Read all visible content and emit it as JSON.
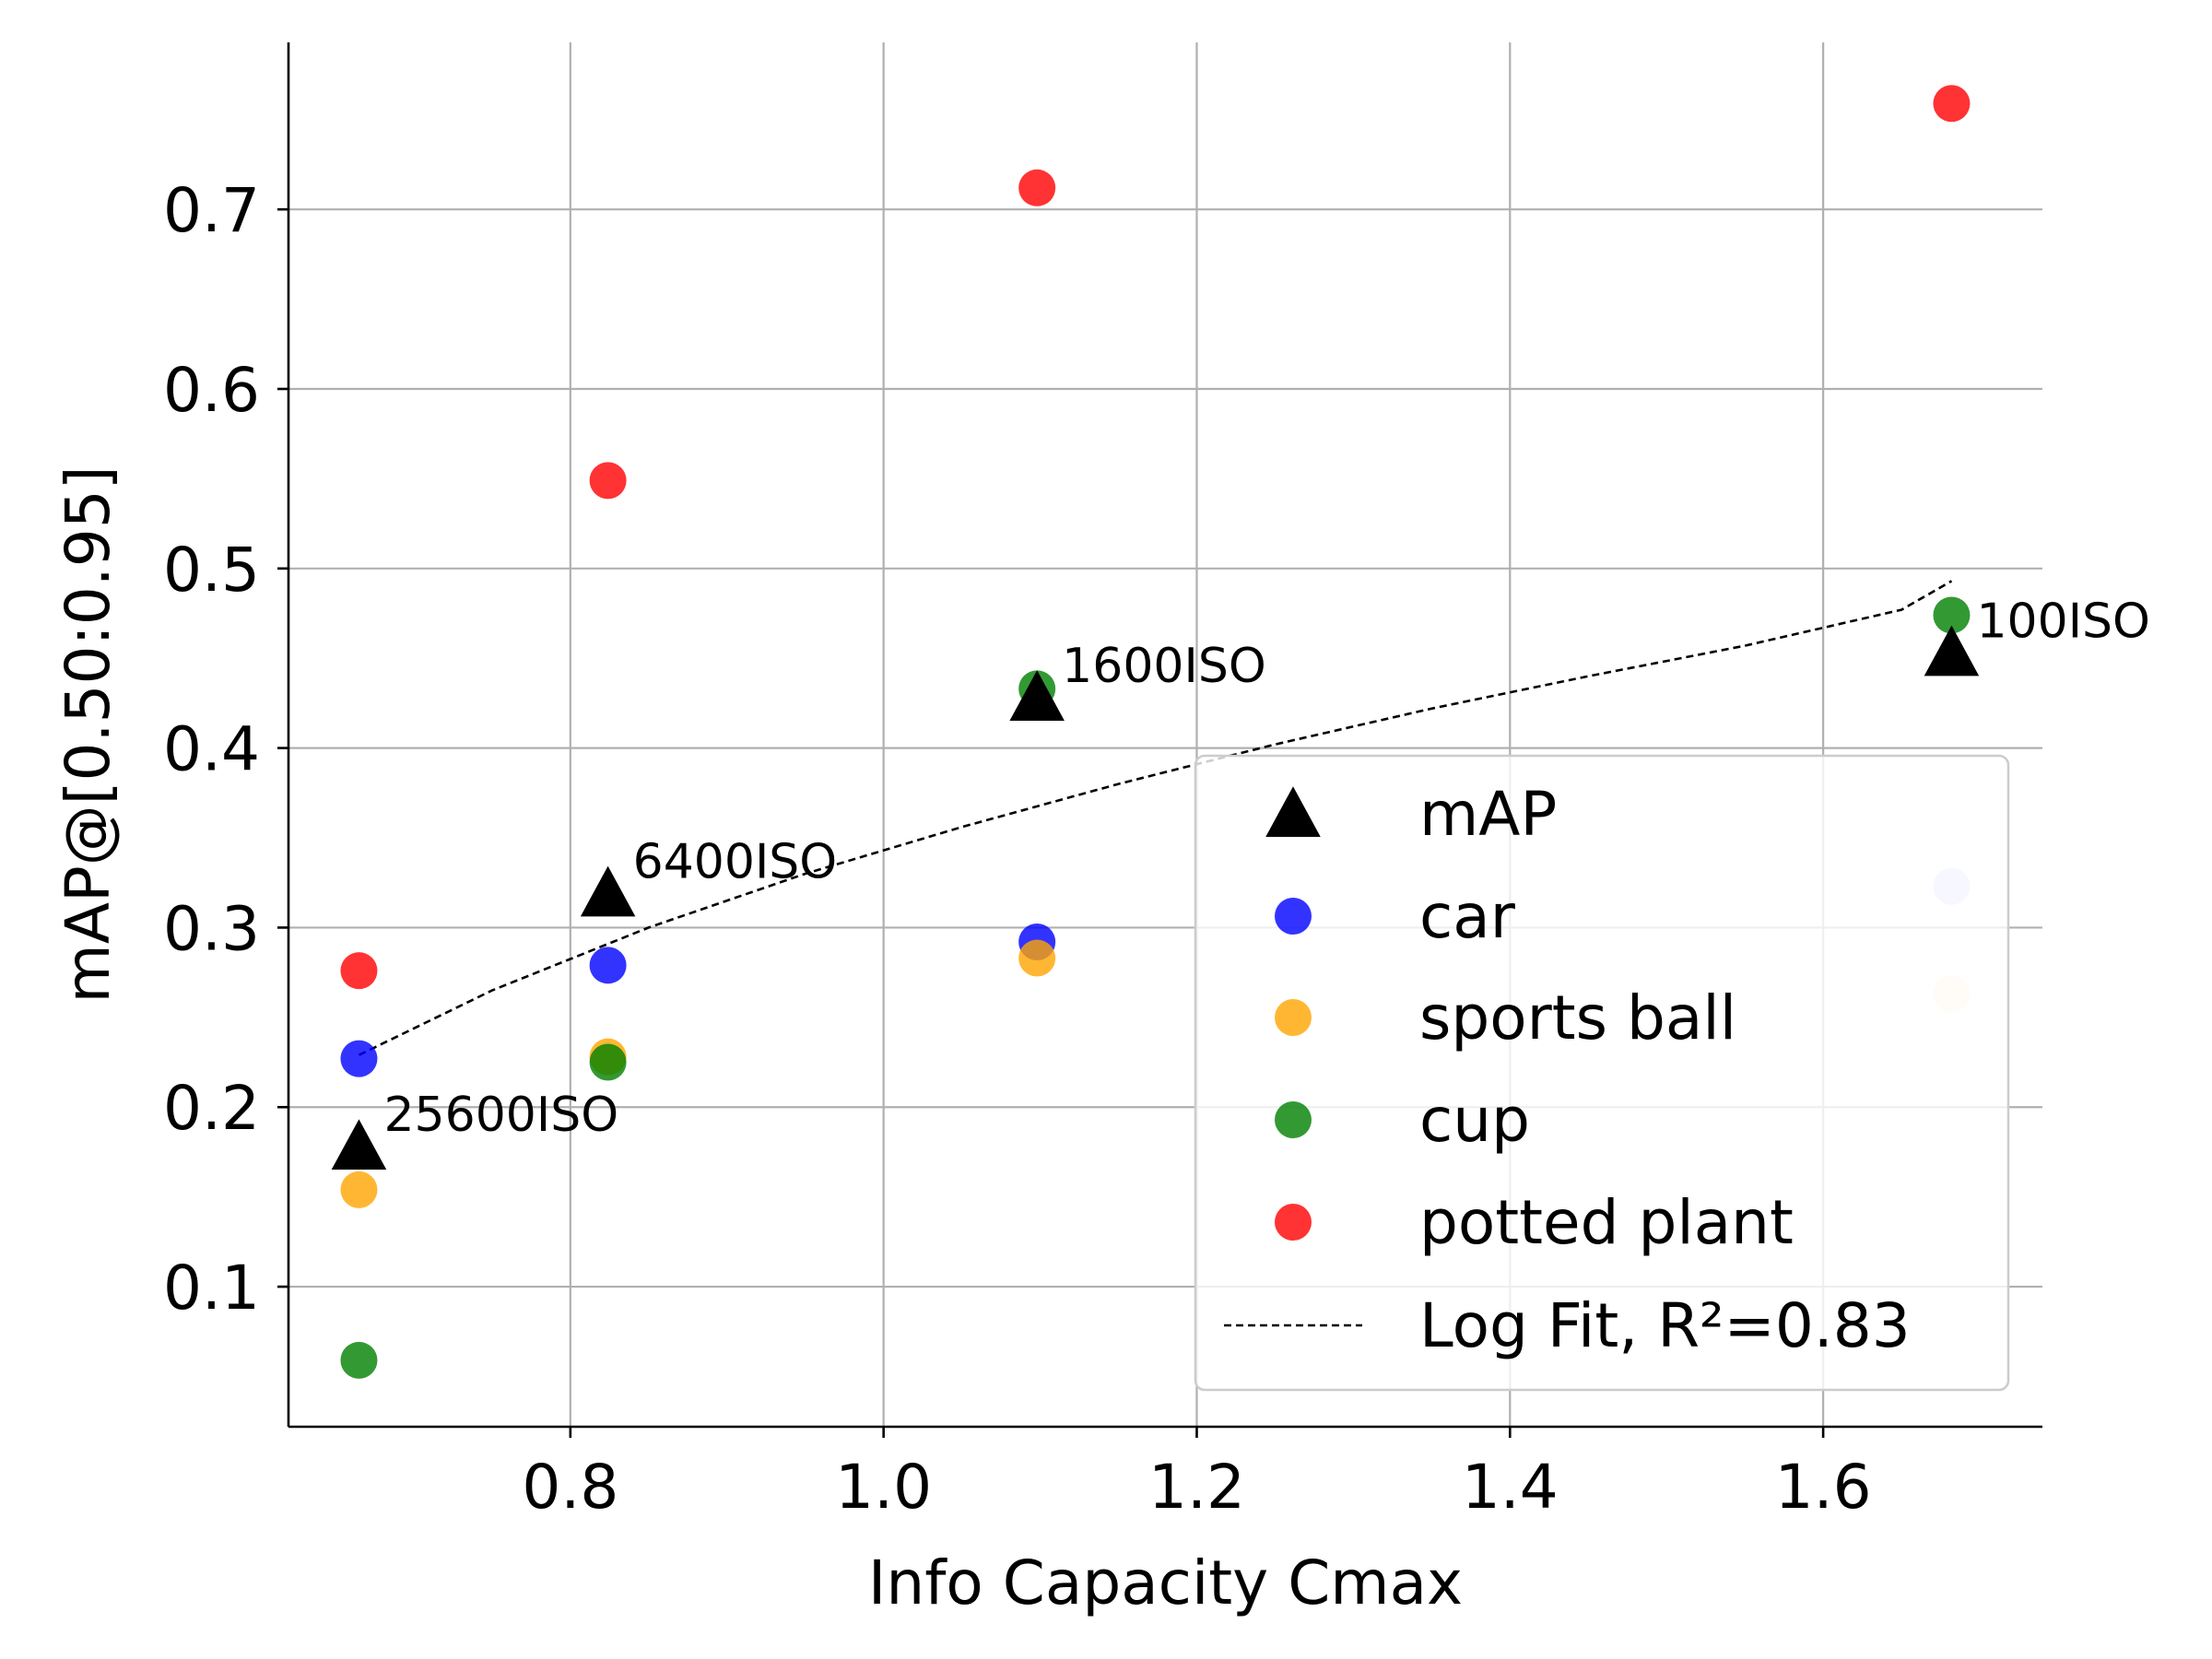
{
  "chart_data": {
    "type": "scatter",
    "xlabel": "Info Capacity Cmax",
    "ylabel": "mAP@[0.50:0.95]",
    "xlim": [
      0.62,
      1.74
    ],
    "ylim": [
      0.022,
      0.793
    ],
    "xticks": [
      0.8,
      1.0,
      1.2,
      1.4,
      1.6
    ],
    "xtick_labels": [
      "0.8",
      "1.0",
      "1.2",
      "1.4",
      "1.6"
    ],
    "yticks": [
      0.1,
      0.2,
      0.3,
      0.4,
      0.5,
      0.6,
      0.7
    ],
    "ytick_labels": [
      "0.1",
      "0.2",
      "0.3",
      "0.4",
      "0.5",
      "0.6",
      "0.7"
    ],
    "grid": true,
    "legend_position": "lower-right",
    "x": [
      0.665,
      0.824,
      1.098,
      1.682
    ],
    "series": [
      {
        "name": "mAP",
        "marker": "triangle",
        "color": "#000000",
        "y": [
          0.178,
          0.319,
          0.428,
          0.453
        ]
      },
      {
        "name": "car",
        "marker": "circle",
        "color": "#0000ff",
        "y": [
          0.227,
          0.279,
          0.292,
          0.323
        ],
        "faded": [
          false,
          false,
          false,
          true
        ]
      },
      {
        "name": "sports ball",
        "marker": "circle",
        "color": "#ffa500",
        "y": [
          0.154,
          0.228,
          0.283,
          0.263
        ],
        "faded": [
          false,
          false,
          false,
          true
        ]
      },
      {
        "name": "cup",
        "marker": "circle",
        "color": "#008000",
        "y": [
          0.059,
          0.225,
          0.433,
          0.474
        ],
        "faded": [
          false,
          false,
          false,
          false
        ]
      },
      {
        "name": "potted plant",
        "marker": "circle",
        "color": "#ff0000",
        "y": [
          0.276,
          0.549,
          0.712,
          0.759
        ],
        "faded": [
          false,
          false,
          false,
          false
        ]
      }
    ],
    "fit": {
      "name": "Log Fit, R²=0.83",
      "style": "dashed",
      "x": [
        0.665,
        0.75,
        0.85,
        0.95,
        1.05,
        1.15,
        1.25,
        1.35,
        1.45,
        1.55,
        1.65,
        1.682
      ],
      "y": [
        0.229,
        0.265,
        0.3,
        0.33,
        0.356,
        0.38,
        0.402,
        0.422,
        0.44,
        0.457,
        0.477,
        0.493
      ]
    },
    "annotations": [
      {
        "text": "25600ISO",
        "x": 0.665,
        "y": 0.178
      },
      {
        "text": "6400ISO",
        "x": 0.824,
        "y": 0.319
      },
      {
        "text": "1600ISO",
        "x": 1.098,
        "y": 0.428
      },
      {
        "text": "100ISO",
        "x": 1.682,
        "y": 0.453
      }
    ]
  }
}
